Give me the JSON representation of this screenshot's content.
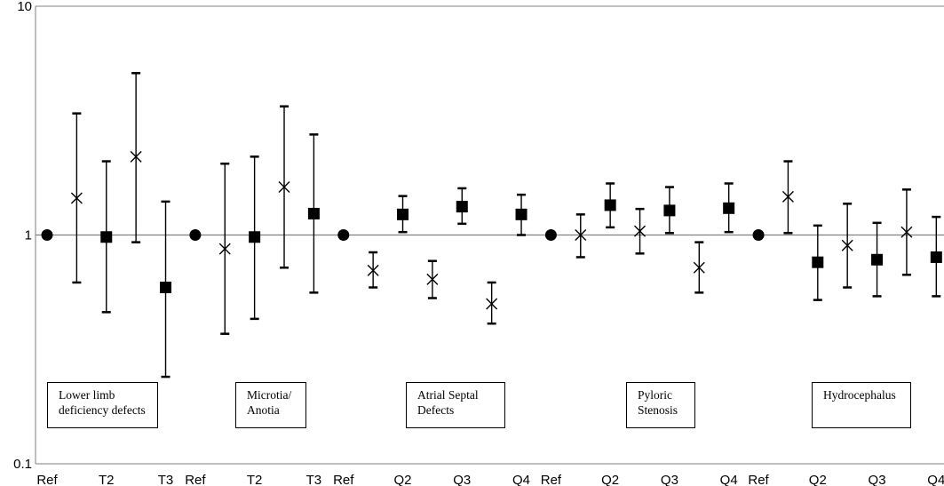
{
  "chart_data": {
    "type": "scatter",
    "scale": "log",
    "ylim": [
      0.1,
      10
    ],
    "y_ticks": [
      "10",
      "1",
      "0.1"
    ],
    "reference_line": 1,
    "groups": [
      {
        "label": "Lower limb\ndeficiency defects",
        "points": [
          {
            "x": "Ref",
            "y": 1.0,
            "marker": "circle"
          },
          {
            "x": "",
            "y": 1.45,
            "lo": 0.62,
            "hi": 3.4,
            "marker": "x"
          },
          {
            "x": "T2",
            "y": 0.98,
            "lo": 0.46,
            "hi": 2.1,
            "marker": "square"
          },
          {
            "x": "",
            "y": 2.2,
            "lo": 0.93,
            "hi": 5.1,
            "marker": "x"
          },
          {
            "x": "T3",
            "y": 0.59,
            "lo": 0.24,
            "hi": 1.4,
            "marker": "square"
          }
        ]
      },
      {
        "label": "Microtia/\nAnotia",
        "points": [
          {
            "x": "Ref",
            "y": 1.0,
            "marker": "circle"
          },
          {
            "x": "",
            "y": 0.87,
            "lo": 0.37,
            "hi": 2.05,
            "marker": "x"
          },
          {
            "x": "T2",
            "y": 0.98,
            "lo": 0.43,
            "hi": 2.2,
            "marker": "square"
          },
          {
            "x": "",
            "y": 1.62,
            "lo": 0.72,
            "hi": 3.65,
            "marker": "x"
          },
          {
            "x": "T3",
            "y": 1.24,
            "lo": 0.56,
            "hi": 2.75,
            "marker": "square"
          }
        ]
      },
      {
        "label": "Atrial Septal\nDefects",
        "points": [
          {
            "x": "Ref",
            "y": 1.0,
            "marker": "circle"
          },
          {
            "x": "",
            "y": 0.7,
            "lo": 0.59,
            "hi": 0.84,
            "marker": "x"
          },
          {
            "x": "Q2",
            "y": 1.23,
            "lo": 1.03,
            "hi": 1.48,
            "marker": "square"
          },
          {
            "x": "",
            "y": 0.64,
            "lo": 0.53,
            "hi": 0.77,
            "marker": "x"
          },
          {
            "x": "Q3",
            "y": 1.33,
            "lo": 1.12,
            "hi": 1.6,
            "marker": "square"
          },
          {
            "x": "",
            "y": 0.5,
            "lo": 0.41,
            "hi": 0.62,
            "marker": "x"
          },
          {
            "x": "Q4",
            "y": 1.23,
            "lo": 1.0,
            "hi": 1.5,
            "marker": "square"
          }
        ]
      },
      {
        "label": "Pyloric\nStenosis",
        "points": [
          {
            "x": "Ref",
            "y": 1.0,
            "marker": "circle"
          },
          {
            "x": "",
            "y": 1.0,
            "lo": 0.8,
            "hi": 1.23,
            "marker": "x"
          },
          {
            "x": "Q2",
            "y": 1.35,
            "lo": 1.08,
            "hi": 1.68,
            "marker": "square"
          },
          {
            "x": "",
            "y": 1.04,
            "lo": 0.83,
            "hi": 1.3,
            "marker": "x"
          },
          {
            "x": "Q3",
            "y": 1.28,
            "lo": 1.02,
            "hi": 1.62,
            "marker": "square"
          },
          {
            "x": "",
            "y": 0.72,
            "lo": 0.56,
            "hi": 0.93,
            "marker": "x"
          },
          {
            "x": "Q4",
            "y": 1.31,
            "lo": 1.03,
            "hi": 1.68,
            "marker": "square"
          }
        ]
      },
      {
        "label": "Hydrocephalus",
        "points": [
          {
            "x": "Ref",
            "y": 1.0,
            "marker": "circle"
          },
          {
            "x": "",
            "y": 1.47,
            "lo": 1.02,
            "hi": 2.1,
            "marker": "x"
          },
          {
            "x": "Q2",
            "y": 0.76,
            "lo": 0.52,
            "hi": 1.1,
            "marker": "square"
          },
          {
            "x": "",
            "y": 0.9,
            "lo": 0.59,
            "hi": 1.37,
            "marker": "x"
          },
          {
            "x": "Q3",
            "y": 0.78,
            "lo": 0.54,
            "hi": 1.13,
            "marker": "square"
          },
          {
            "x": "",
            "y": 1.03,
            "lo": 0.67,
            "hi": 1.58,
            "marker": "x"
          },
          {
            "x": "Q4",
            "y": 0.8,
            "lo": 0.54,
            "hi": 1.2,
            "marker": "square"
          }
        ]
      }
    ]
  }
}
